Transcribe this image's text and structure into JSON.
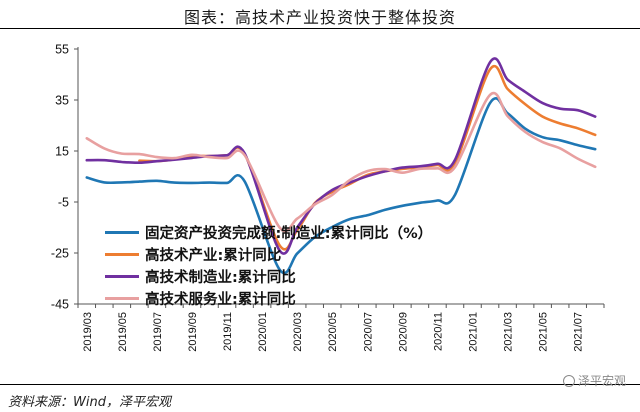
{
  "header": {
    "title": "图表：高技术产业投资快于整体投资"
  },
  "footer": {
    "source": "资料来源：Wind，泽平宏观",
    "watermark": "泽平宏观"
  },
  "chart_data": {
    "type": "line",
    "title": "图表：高技术产业投资快于整体投资",
    "xlabel": "",
    "ylabel": "",
    "ylim": [
      -45,
      55
    ],
    "yticks": [
      "55",
      "35",
      "15",
      "-5",
      "-25",
      "-45"
    ],
    "x": [
      "2019/03",
      "2019/04",
      "2019/05",
      "2019/06",
      "2019/07",
      "2019/08",
      "2019/09",
      "2019/10",
      "2019/11",
      "2019/12",
      "2020/01",
      "2020/02",
      "2020/03",
      "2020/04",
      "2020/05",
      "2020/06",
      "2020/07",
      "2020/08",
      "2020/09",
      "2020/10",
      "2020/11",
      "2020/12",
      "2021/01",
      "2021/02",
      "2021/03",
      "2021/04",
      "2021/05",
      "2021/06",
      "2021/07",
      "2021/08"
    ],
    "xticks": [
      "2019/03",
      "2019/05",
      "2019/07",
      "2019/09",
      "2019/11",
      "2020/01",
      "2020/03",
      "2020/05",
      "2020/07",
      "2020/09",
      "2020/11",
      "2021/01",
      "2021/03",
      "2021/05",
      "2021/07"
    ],
    "legend_position": "bottom-left",
    "series": [
      {
        "name": "固定资产投资完成额:制造业:累计同比（%）",
        "color": "#1f77b4",
        "values": [
          4.6,
          2.7,
          2.7,
          3.0,
          3.3,
          2.6,
          2.5,
          2.6,
          2.5,
          3.1,
          null,
          -31.5,
          -25.2,
          -18.8,
          -14.8,
          -11.7,
          -10.2,
          -8.1,
          -6.5,
          -5.3,
          -4.4,
          -2.2,
          null,
          33.8,
          29.8,
          23.8,
          20.4,
          19.2,
          17.3,
          15.7
        ]
      },
      {
        "name": "高技术产业:累计同比",
        "color": "#ed7d31",
        "values": [
          null,
          null,
          null,
          11.2,
          11.0,
          11.7,
          13.0,
          13.0,
          13.3,
          13.9,
          null,
          -22.0,
          -16.0,
          -5.5,
          -1.0,
          2.1,
          5.6,
          7.0,
          8.0,
          8.6,
          9.5,
          10.1,
          null,
          47.0,
          39.3,
          33.4,
          28.5,
          25.8,
          23.9,
          21.3
        ]
      },
      {
        "name": "高技术制造业:累计同比",
        "color": "#7030a0",
        "values": [
          11.4,
          11.4,
          10.7,
          10.4,
          11.0,
          11.6,
          12.3,
          13.0,
          13.3,
          14.1,
          null,
          -24.0,
          -15.0,
          -5.8,
          -0.3,
          2.6,
          5.1,
          7.0,
          8.5,
          9.0,
          10.0,
          11.5,
          null,
          49.8,
          43.0,
          38.2,
          33.8,
          31.6,
          31.0,
          28.5
        ]
      },
      {
        "name": "高技术服务业:累计同比",
        "color": "#e8a0a0",
        "values": [
          20.0,
          16.0,
          14.0,
          13.8,
          12.6,
          12.2,
          13.5,
          12.6,
          12.2,
          13.4,
          null,
          -15.0,
          -11.5,
          -6.0,
          -2.2,
          3.6,
          7.1,
          7.9,
          6.5,
          8.0,
          8.2,
          8.7,
          null,
          37.0,
          28.7,
          22.5,
          18.5,
          16.0,
          12.0,
          8.8
        ]
      }
    ]
  }
}
